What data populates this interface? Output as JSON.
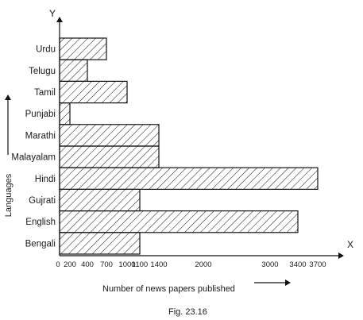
{
  "chart_data": {
    "type": "bar",
    "orientation": "horizontal",
    "categories": [
      "Bengali",
      "English",
      "Gujrati",
      "Hindi",
      "Malayalam",
      "Marathi",
      "Punjabi",
      "Tamil",
      "Telugu",
      "Urdu"
    ],
    "values": [
      1100,
      3400,
      1100,
      3700,
      1400,
      1400,
      200,
      1000,
      400,
      700
    ],
    "xticks": [
      {
        "value": 0,
        "label": "0"
      },
      {
        "value": 200,
        "label": "200"
      },
      {
        "value": 400,
        "label": "400"
      },
      {
        "value": 700,
        "label": "700"
      },
      {
        "value": 1000,
        "label": "1000"
      },
      {
        "value": 1100,
        "label": "1100"
      },
      {
        "value": 1400,
        "label": "1400"
      },
      {
        "value": 2000,
        "label": "2000"
      },
      {
        "value": 3000,
        "label": "3000"
      },
      {
        "value": 3400,
        "label": "3400"
      },
      {
        "value": 3700,
        "label": "3700"
      }
    ],
    "xlabel": "Number of news papers published",
    "ylabel": "Languages",
    "x_axis_letter": "X",
    "y_axis_letter": "Y",
    "xlim": [
      0,
      3950
    ],
    "grid": false,
    "fill": "diagonal hatching",
    "bar_color": "#111111"
  },
  "caption": "Fig. 23.16"
}
